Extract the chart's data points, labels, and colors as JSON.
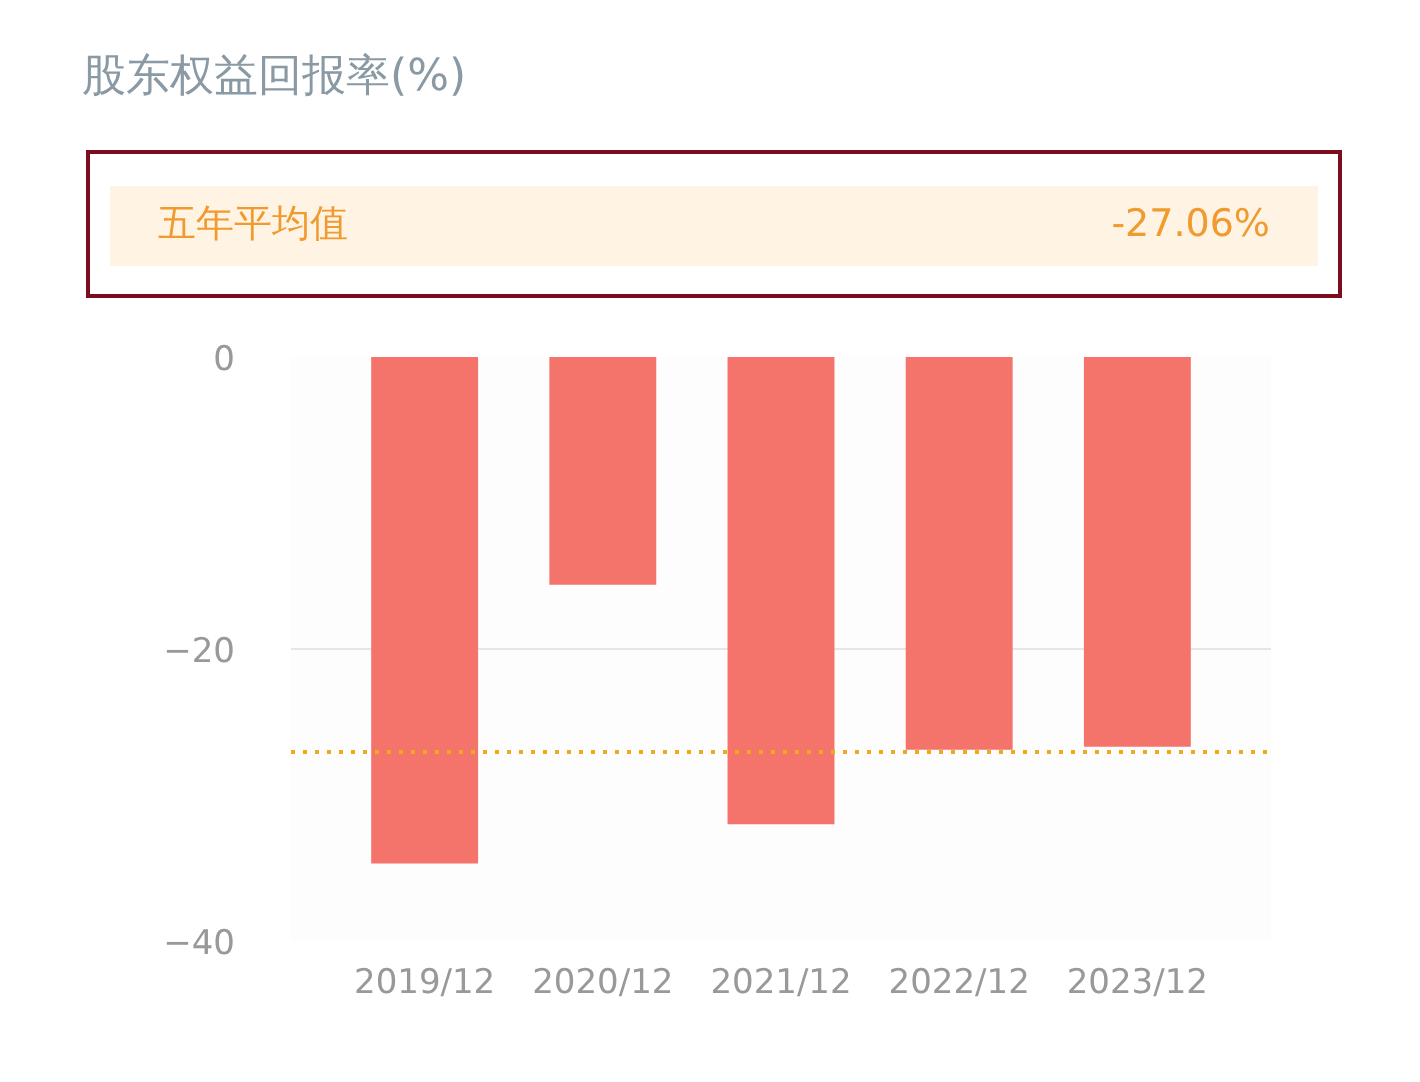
{
  "chart_data": {
    "type": "bar",
    "title": "股东权益回报率(%)",
    "categories": [
      "2019/12",
      "2020/12",
      "2021/12",
      "2022/12",
      "2023/12"
    ],
    "values": [
      -34.7,
      -15.6,
      -32.0,
      -26.9,
      -26.7
    ],
    "color": "#f4736b",
    "ylim": [
      -40,
      0
    ],
    "yticks": [
      -40,
      -20,
      0
    ],
    "grid": "y",
    "ref_lines": [
      {
        "axis": "y",
        "value": -27.06,
        "color": "#f0a820",
        "line_style": "dotted"
      }
    ],
    "annotations": [
      "五年平均值",
      "-27.06%"
    ]
  }
}
